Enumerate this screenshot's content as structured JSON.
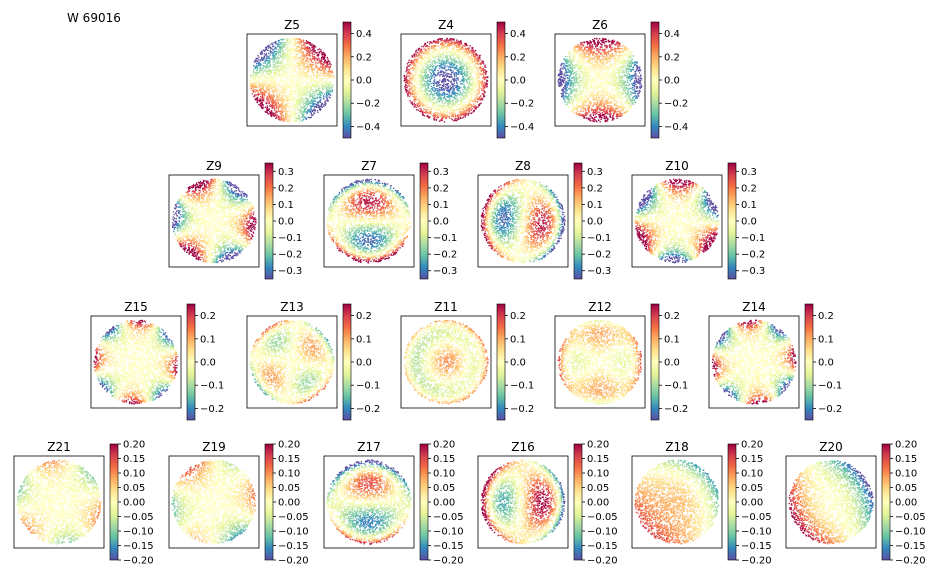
{
  "figure": {
    "title": "W 69016"
  },
  "chart_data": [
    {
      "type": "heatmap",
      "title": "Z5",
      "clim": [
        -0.5,
        0.5
      ],
      "ticks": [
        0.4,
        0.2,
        0.0,
        -0.2,
        -0.4
      ],
      "tick_labels": [
        "0.4",
        "0.2",
        "0.0",
        "−0.2",
        "−0.4"
      ]
    },
    {
      "type": "heatmap",
      "title": "Z4",
      "clim": [
        -0.5,
        0.5
      ],
      "ticks": [
        0.4,
        0.2,
        0.0,
        -0.2,
        -0.4
      ],
      "tick_labels": [
        "0.4",
        "0.2",
        "0.0",
        "−0.2",
        "−0.4"
      ]
    },
    {
      "type": "heatmap",
      "title": "Z6",
      "clim": [
        -0.5,
        0.5
      ],
      "ticks": [
        0.4,
        0.2,
        0.0,
        -0.2,
        -0.4
      ],
      "tick_labels": [
        "0.4",
        "0.2",
        "0.0",
        "−0.2",
        "−0.4"
      ]
    },
    {
      "type": "heatmap",
      "title": "Z9",
      "clim": [
        -0.35,
        0.35
      ],
      "ticks": [
        0.3,
        0.2,
        0.1,
        0.0,
        -0.1,
        -0.2,
        -0.3
      ],
      "tick_labels": [
        "0.3",
        "0.2",
        "0.1",
        "0.0",
        "−0.1",
        "−0.2",
        "−0.3"
      ]
    },
    {
      "type": "heatmap",
      "title": "Z7",
      "clim": [
        -0.35,
        0.35
      ],
      "ticks": [
        0.3,
        0.2,
        0.1,
        0.0,
        -0.1,
        -0.2,
        -0.3
      ],
      "tick_labels": [
        "0.3",
        "0.2",
        "0.1",
        "0.0",
        "−0.1",
        "−0.2",
        "−0.3"
      ]
    },
    {
      "type": "heatmap",
      "title": "Z8",
      "clim": [
        -0.35,
        0.35
      ],
      "ticks": [
        0.3,
        0.2,
        0.1,
        0.0,
        -0.1,
        -0.2,
        -0.3
      ],
      "tick_labels": [
        "0.3",
        "0.2",
        "0.1",
        "0.0",
        "−0.1",
        "−0.2",
        "−0.3"
      ]
    },
    {
      "type": "heatmap",
      "title": "Z10",
      "clim": [
        -0.35,
        0.35
      ],
      "ticks": [
        0.3,
        0.2,
        0.1,
        0.0,
        -0.1,
        -0.2,
        -0.3
      ],
      "tick_labels": [
        "0.3",
        "0.2",
        "0.1",
        "0.0",
        "−0.1",
        "−0.2",
        "−0.3"
      ]
    },
    {
      "type": "heatmap",
      "title": "Z15",
      "clim": [
        -0.25,
        0.25
      ],
      "ticks": [
        0.2,
        0.1,
        0.0,
        -0.1,
        -0.2
      ],
      "tick_labels": [
        "0.2",
        "0.1",
        "0.0",
        "−0.1",
        "−0.2"
      ]
    },
    {
      "type": "heatmap",
      "title": "Z13",
      "clim": [
        -0.25,
        0.25
      ],
      "ticks": [
        0.2,
        0.1,
        0.0,
        -0.1,
        -0.2
      ],
      "tick_labels": [
        "0.2",
        "0.1",
        "0.0",
        "−0.1",
        "−0.2"
      ]
    },
    {
      "type": "heatmap",
      "title": "Z11",
      "clim": [
        -0.25,
        0.25
      ],
      "ticks": [
        0.2,
        0.1,
        0.0,
        -0.1,
        -0.2
      ],
      "tick_labels": [
        "0.2",
        "0.1",
        "0.0",
        "−0.1",
        "−0.2"
      ]
    },
    {
      "type": "heatmap",
      "title": "Z12",
      "clim": [
        -0.25,
        0.25
      ],
      "ticks": [
        0.2,
        0.1,
        0.0,
        -0.1,
        -0.2
      ],
      "tick_labels": [
        "0.2",
        "0.1",
        "0.0",
        "−0.1",
        "−0.2"
      ]
    },
    {
      "type": "heatmap",
      "title": "Z14",
      "clim": [
        -0.25,
        0.25
      ],
      "ticks": [
        0.2,
        0.1,
        0.0,
        -0.1,
        -0.2
      ],
      "tick_labels": [
        "0.2",
        "0.1",
        "0.0",
        "−0.1",
        "−0.2"
      ]
    },
    {
      "type": "heatmap",
      "title": "Z21",
      "clim": [
        -0.2,
        0.2
      ],
      "ticks": [
        0.2,
        0.15,
        0.1,
        0.05,
        0.0,
        -0.05,
        -0.1,
        -0.15,
        -0.2
      ],
      "tick_labels": [
        "0.20",
        "0.15",
        "0.10",
        "0.05",
        "0.00",
        "−0.05",
        "−0.10",
        "−0.15",
        "−0.20"
      ]
    },
    {
      "type": "heatmap",
      "title": "Z19",
      "clim": [
        -0.2,
        0.2
      ],
      "ticks": [
        0.2,
        0.15,
        0.1,
        0.05,
        0.0,
        -0.05,
        -0.1,
        -0.15,
        -0.2
      ],
      "tick_labels": [
        "0.20",
        "0.15",
        "0.10",
        "0.05",
        "0.00",
        "−0.05",
        "−0.10",
        "−0.15",
        "−0.20"
      ]
    },
    {
      "type": "heatmap",
      "title": "Z17",
      "clim": [
        -0.2,
        0.2
      ],
      "ticks": [
        0.2,
        0.15,
        0.1,
        0.05,
        0.0,
        -0.05,
        -0.1,
        -0.15,
        -0.2
      ],
      "tick_labels": [
        "0.20",
        "0.15",
        "0.10",
        "0.05",
        "0.00",
        "−0.05",
        "−0.10",
        "−0.15",
        "−0.20"
      ]
    },
    {
      "type": "heatmap",
      "title": "Z16",
      "clim": [
        -0.2,
        0.2
      ],
      "ticks": [
        0.2,
        0.15,
        0.1,
        0.05,
        0.0,
        -0.05,
        -0.1,
        -0.15,
        -0.2
      ],
      "tick_labels": [
        "0.20",
        "0.15",
        "0.10",
        "0.05",
        "0.00",
        "−0.05",
        "−0.10",
        "−0.15",
        "−0.20"
      ]
    },
    {
      "type": "heatmap",
      "title": "Z18",
      "clim": [
        -0.2,
        0.2
      ],
      "ticks": [
        0.2,
        0.15,
        0.1,
        0.05,
        0.0,
        -0.05,
        -0.1,
        -0.15,
        -0.2
      ],
      "tick_labels": [
        "0.20",
        "0.15",
        "0.10",
        "0.05",
        "0.00",
        "−0.05",
        "−0.10",
        "−0.15",
        "−0.20"
      ]
    },
    {
      "type": "heatmap",
      "title": "Z20",
      "clim": [
        -0.2,
        0.2
      ],
      "ticks": [
        0.2,
        0.15,
        0.1,
        0.05,
        0.0,
        -0.05,
        -0.1,
        -0.15,
        -0.2
      ],
      "tick_labels": [
        "0.20",
        "0.15",
        "0.10",
        "0.05",
        "0.00",
        "−0.05",
        "−0.10",
        "−0.15",
        "−0.20"
      ]
    }
  ],
  "colormap": [
    "#5e4fa2",
    "#3288bd",
    "#66c2a5",
    "#abdda4",
    "#e6f598",
    "#ffffbf",
    "#fee08b",
    "#fdae61",
    "#f46d43",
    "#d53e4f",
    "#9e0142"
  ]
}
